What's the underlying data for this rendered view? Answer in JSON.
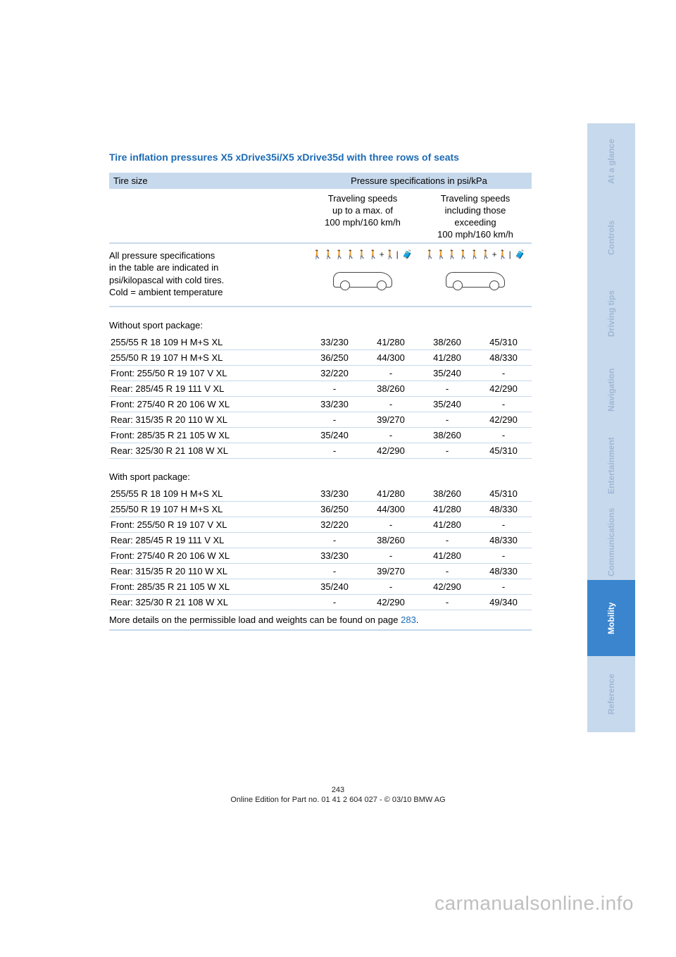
{
  "title": "Tire inflation pressures X5 xDrive35i/X5 xDrive35d with three rows of seats",
  "header": {
    "tire_size": "Tire size",
    "pressure_spec": "Pressure specifications in psi/kPa",
    "speed_low": "Traveling speeds\nup to a max. of\n100 mph/160 km/h",
    "speed_high": "Traveling speeds\nincluding those\nexceeding\n100 mph/160 km/h",
    "note": "All pressure specifications\nin the table are indicated in\npsi/kilopascal with cold tires.\nCold = ambient temperature"
  },
  "sections": [
    {
      "label": "Without sport package:",
      "rows": [
        {
          "size": "255/55 R 18 109 H M+S XL",
          "v": [
            "33/230",
            "41/280",
            "38/260",
            "45/310"
          ]
        },
        {
          "size": "255/50 R 19 107 H M+S XL",
          "v": [
            "36/250",
            "44/300",
            "41/280",
            "48/330"
          ]
        },
        {
          "size": "Front: 255/50 R 19 107 V XL",
          "v": [
            "32/220",
            "-",
            "35/240",
            "-"
          ]
        },
        {
          "size": "Rear: 285/45 R 19 111 V XL",
          "v": [
            "-",
            "38/260",
            "-",
            "42/290"
          ]
        },
        {
          "size": "Front: 275/40 R 20 106 W XL",
          "v": [
            "33/230",
            "-",
            "35/240",
            "-"
          ]
        },
        {
          "size": "Rear: 315/35 R 20 110 W XL",
          "v": [
            "-",
            "39/270",
            "-",
            "42/290"
          ]
        },
        {
          "size": "Front: 285/35 R 21 105 W XL",
          "v": [
            "35/240",
            "-",
            "38/260",
            "-"
          ]
        },
        {
          "size": "Rear: 325/30 R 21 108 W XL",
          "v": [
            "-",
            "42/290",
            "-",
            "45/310"
          ]
        }
      ]
    },
    {
      "label": "With sport package:",
      "rows": [
        {
          "size": "255/55 R 18 109 H M+S XL",
          "v": [
            "33/230",
            "41/280",
            "38/260",
            "45/310"
          ]
        },
        {
          "size": "255/50 R 19 107 H M+S XL",
          "v": [
            "36/250",
            "44/300",
            "41/280",
            "48/330"
          ]
        },
        {
          "size": "Front: 255/50 R 19 107 V XL",
          "v": [
            "32/220",
            "-",
            "41/280",
            "-"
          ]
        },
        {
          "size": "Rear: 285/45 R 19 111 V XL",
          "v": [
            "-",
            "38/260",
            "-",
            "48/330"
          ]
        },
        {
          "size": "Front: 275/40 R 20 106 W XL",
          "v": [
            "33/230",
            "-",
            "41/280",
            "-"
          ]
        },
        {
          "size": "Rear: 315/35 R 20 110 W XL",
          "v": [
            "-",
            "39/270",
            "-",
            "48/330"
          ]
        },
        {
          "size": "Front: 285/35 R 21 105 W XL",
          "v": [
            "35/240",
            "-",
            "42/290",
            "-"
          ]
        },
        {
          "size": "Rear: 325/30 R 21 108 W XL",
          "v": [
            "-",
            "42/290",
            "-",
            "49/340"
          ]
        }
      ]
    }
  ],
  "footnote": {
    "text": "More details on the permissible load and weights can be found on page ",
    "link": "283",
    "suffix": "."
  },
  "footer": {
    "page": "243",
    "edition": "Online Edition for Part no. 01 41 2 604 027 - © 03/10 BMW AG"
  },
  "tabs": [
    {
      "label": "At a glance",
      "active": false
    },
    {
      "label": "Controls",
      "active": false
    },
    {
      "label": "Driving tips",
      "active": false
    },
    {
      "label": "Navigation",
      "active": false
    },
    {
      "label": "Entertainment",
      "active": false
    },
    {
      "label": "Communications",
      "active": false
    },
    {
      "label": "Mobility",
      "active": true
    },
    {
      "label": "Reference",
      "active": false
    }
  ],
  "watermark": "carmanualsonline.info",
  "persons_glyph": "🚶🚶🚶🚶🚶🚶+🚶| 🧳"
}
